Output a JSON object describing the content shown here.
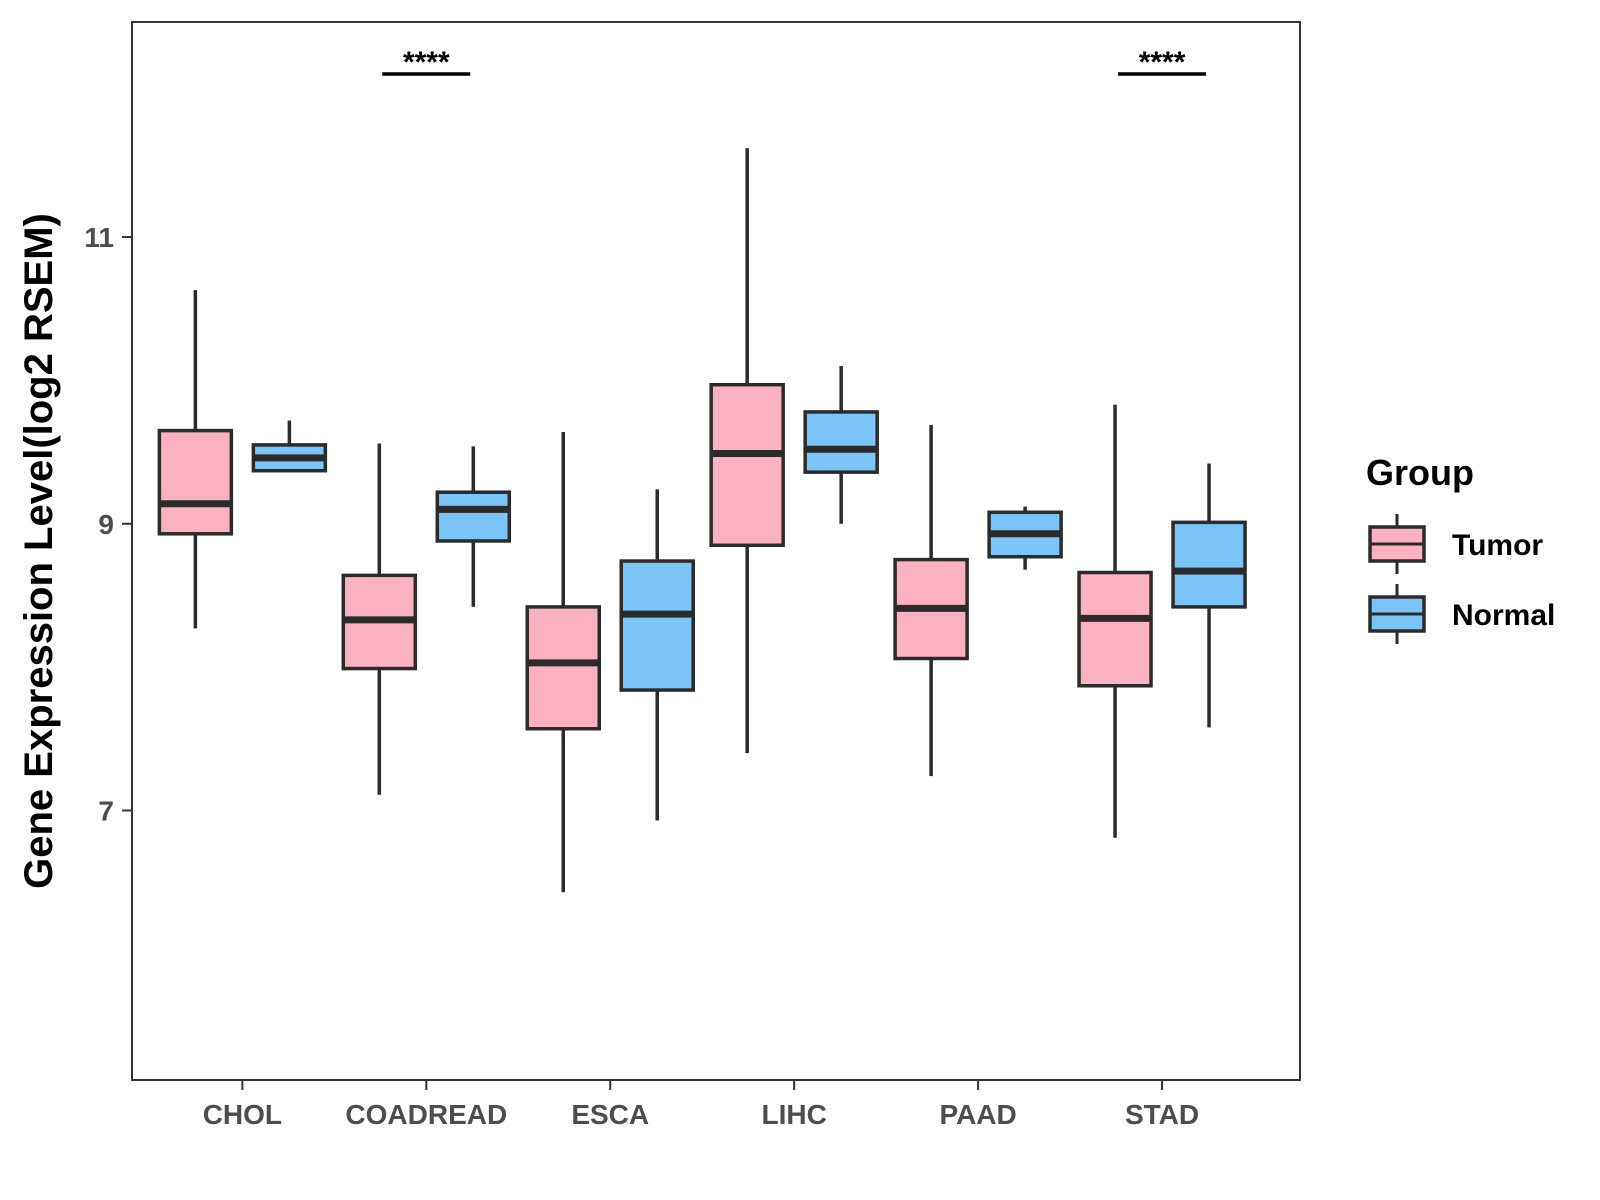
{
  "chart_data": {
    "type": "boxplot",
    "title": "",
    "xlabel": "",
    "ylabel": "Gene Expression Level(log2 RSEM)",
    "ylim": [
      5.12,
      12.5
    ],
    "y_ticks": [
      7,
      9,
      11
    ],
    "y_tick_labels": [
      "7",
      "9",
      "11"
    ],
    "categories": [
      "CHOL",
      "COADREAD",
      "ESCA",
      "LIHC",
      "PAAD",
      "STAD"
    ],
    "legend": {
      "title": "Group",
      "position": "right",
      "entries": [
        "Tumor",
        "Normal"
      ]
    },
    "series": [
      {
        "name": "Tumor",
        "color": "#fbb1c2",
        "boxes": [
          {
            "min": 8.27,
            "q1": 8.93,
            "median": 9.14,
            "q3": 9.65,
            "max": 10.63
          },
          {
            "min": 7.11,
            "q1": 7.99,
            "median": 8.33,
            "q3": 8.64,
            "max": 9.56
          },
          {
            "min": 6.43,
            "q1": 7.57,
            "median": 8.03,
            "q3": 8.42,
            "max": 9.64
          },
          {
            "min": 7.4,
            "q1": 8.85,
            "median": 9.49,
            "q3": 9.97,
            "max": 11.62
          },
          {
            "min": 7.24,
            "q1": 8.06,
            "median": 8.41,
            "q3": 8.75,
            "max": 9.69
          },
          {
            "min": 6.81,
            "q1": 7.87,
            "median": 8.34,
            "q3": 8.66,
            "max": 9.83
          }
        ]
      },
      {
        "name": "Normal",
        "color": "#7ac4f8",
        "boxes": [
          {
            "min": 9.37,
            "q1": 9.37,
            "median": 9.46,
            "q3": 9.55,
            "max": 9.72
          },
          {
            "min": 8.42,
            "q1": 8.88,
            "median": 9.1,
            "q3": 9.22,
            "max": 9.54
          },
          {
            "min": 6.93,
            "q1": 7.84,
            "median": 8.37,
            "q3": 8.74,
            "max": 9.24
          },
          {
            "min": 9.0,
            "q1": 9.36,
            "median": 9.52,
            "q3": 9.78,
            "max": 10.1
          },
          {
            "min": 8.68,
            "q1": 8.77,
            "median": 8.93,
            "q3": 9.08,
            "max": 9.12
          },
          {
            "min": 7.58,
            "q1": 8.42,
            "median": 8.67,
            "q3": 9.01,
            "max": 9.42
          }
        ]
      }
    ],
    "annotations": [
      {
        "category": "COADREAD",
        "label": "****"
      },
      {
        "category": "STAD",
        "label": "****"
      }
    ]
  }
}
